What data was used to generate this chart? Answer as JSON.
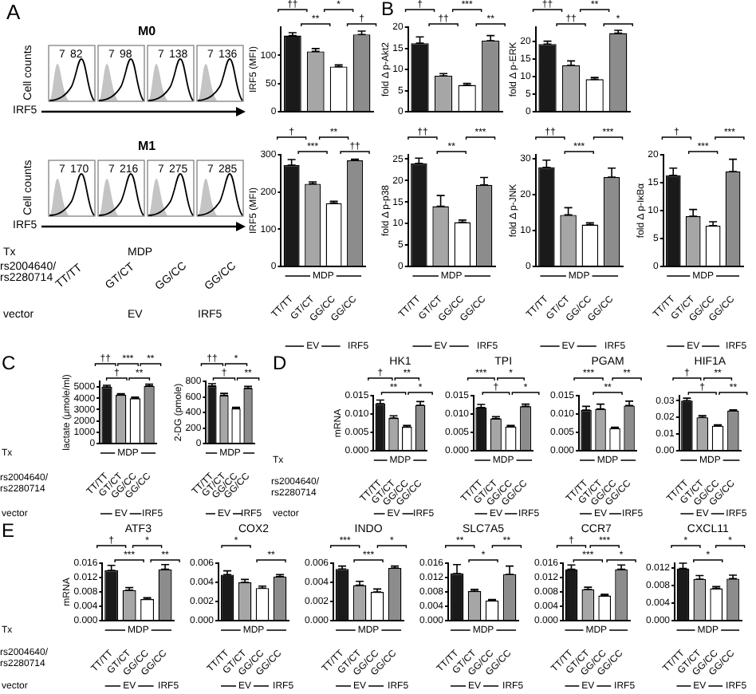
{
  "chart_data": [
    {
      "type": "other",
      "title": "M0",
      "ylabel": "Cell counts",
      "xlabel": "IRF5",
      "annotations": [
        "A",
        "7",
        "82",
        "7",
        "98",
        "7",
        "138",
        "7",
        "136"
      ]
    },
    {
      "type": "bar",
      "ylabel": "IRF5 (MFI)",
      "categories": [
        null,
        null,
        null,
        null
      ],
      "values": [
        135,
        107,
        80,
        137
      ],
      "errors": [
        [
          135,
          140
        ],
        [
          107,
          112
        ],
        [
          80,
          83
        ],
        [
          137,
          143
        ]
      ],
      "colors": [
        "#1a1a1a",
        "#a6a6a6",
        "#ffffff",
        "#8c8c8c"
      ],
      "ylim": [
        0,
        150
      ],
      "yticks": [
        0,
        50,
        100
      ],
      "tick_labels": "y",
      "annotations": [
        "††",
        "**",
        "*",
        "†"
      ]
    },
    {
      "type": "other",
      "title": "M1",
      "ylabel": "Cell counts",
      "xlabel": "IRF5",
      "categories": [
        "TT/TT",
        "GT/CT",
        "GG/CC",
        "GG/CC"
      ],
      "annotations": [
        "7",
        "170",
        "7",
        "216",
        "7",
        "275",
        "7",
        "285",
        "Tx",
        "MDP",
        "rs2004640/rs2280714",
        "vector",
        "EV",
        "IRF5"
      ]
    },
    {
      "type": "bar",
      "ylabel": "IRF5 (MFI)",
      "categories": [
        "TT/TT",
        "GT/CT",
        "GG/CC",
        "GG/CC"
      ],
      "values": [
        272,
        222,
        170,
        285
      ],
      "errors": [
        [
          272,
          287
        ],
        [
          222,
          227
        ],
        [
          170,
          175
        ],
        [
          285,
          288
        ]
      ],
      "colors": [
        "#1a1a1a",
        "#a6a6a6",
        "#ffffff",
        "#8c8c8c"
      ],
      "ylim": [
        0,
        300
      ],
      "yticks": [
        0,
        100,
        200,
        300
      ],
      "annotations": [
        "†",
        "***",
        "**",
        "††",
        "MDP",
        "EV",
        "IRF5"
      ]
    },
    {
      "type": "bar",
      "ylabel": "fold Δ p-Akt2",
      "categories": [
        null,
        null,
        null,
        null
      ],
      "values": [
        16.2,
        8.5,
        6.3,
        16.8
      ],
      "errors": [
        [
          16.2,
          17.7
        ],
        [
          8.5,
          9
        ],
        [
          6.3,
          6.7
        ],
        [
          16.8,
          18
        ]
      ],
      "colors": [
        "#1a1a1a",
        "#a6a6a6",
        "#ffffff",
        "#8c8c8c"
      ],
      "ylim": [
        0,
        20
      ],
      "yticks": [
        0,
        5,
        10,
        15,
        20
      ],
      "tick_labels": "y",
      "annotations": [
        "B",
        "†",
        "††",
        "***",
        "**"
      ]
    },
    {
      "type": "bar",
      "ylabel": "fold Δ p-ERK",
      "categories": [
        null,
        null,
        null,
        null
      ],
      "values": [
        19.2,
        13.2,
        9.2,
        22.3
      ],
      "errors": [
        [
          19.2,
          20
        ],
        [
          13.2,
          14.4
        ],
        [
          9.2,
          9.7
        ],
        [
          22.3,
          23.1
        ]
      ],
      "colors": [
        "#1a1a1a",
        "#a6a6a6",
        "#ffffff",
        "#8c8c8c"
      ],
      "ylim": [
        0,
        24
      ],
      "yticks": [
        0,
        5,
        10,
        15,
        20
      ],
      "tick_labels": "y",
      "annotations": [
        "††",
        "††",
        "**",
        "*"
      ]
    },
    {
      "type": "bar",
      "ylabel": "fold Δ p-p38",
      "categories": [
        "TT/TT",
        "GT/CT",
        "GG/CC",
        "GG/CC"
      ],
      "values": [
        24,
        14,
        10.3,
        19
      ],
      "errors": [
        [
          24,
          25.2
        ],
        [
          14,
          16.5
        ],
        [
          10.3,
          10.8
        ],
        [
          19,
          20.7
        ]
      ],
      "colors": [
        "#1a1a1a",
        "#a6a6a6",
        "#ffffff",
        "#8c8c8c"
      ],
      "ylim": [
        0,
        26
      ],
      "yticks": [
        0,
        5,
        10,
        15,
        20,
        25
      ],
      "annotations": [
        "††",
        "**",
        "***",
        "MDP",
        "EV",
        "IRF5"
      ]
    },
    {
      "type": "bar",
      "ylabel": "fold Δ p-JNK",
      "categories": [
        "TT/TT",
        "GT/CT",
        "GG/CC",
        "GG/CC"
      ],
      "values": [
        27.5,
        14.3,
        11.6,
        24.8
      ],
      "errors": [
        [
          27.5,
          29.5
        ],
        [
          14.3,
          16.3
        ],
        [
          11.6,
          12.1
        ],
        [
          24.8,
          27.3
        ]
      ],
      "colors": [
        "#1a1a1a",
        "#a6a6a6",
        "#ffffff",
        "#8c8c8c"
      ],
      "ylim": [
        0,
        31
      ],
      "yticks": [
        0,
        10,
        20,
        30
      ],
      "annotations": [
        "††",
        "***",
        "***",
        "MDP",
        "EV",
        "IRF5"
      ]
    },
    {
      "type": "bar",
      "ylabel": "fold Δ p-IκBα",
      "categories": [
        "TT/TT",
        "GT/CT",
        "GG/CC",
        "GG/CC"
      ],
      "values": [
        16.3,
        9,
        7.3,
        17
      ],
      "errors": [
        [
          16.3,
          17.6
        ],
        [
          9,
          10.2
        ],
        [
          7.3,
          8
        ],
        [
          17,
          19.2
        ]
      ],
      "colors": [
        "#1a1a1a",
        "#a6a6a6",
        "#ffffff",
        "#8c8c8c"
      ],
      "ylim": [
        0,
        20
      ],
      "yticks": [
        0,
        5,
        10,
        15,
        20
      ],
      "annotations": [
        "†",
        "***",
        "***",
        "MDP",
        "EV",
        "IRF5"
      ]
    },
    {
      "type": "bar",
      "ylabel": "lactate (μmole/ml)",
      "categories": [
        "TT/TT",
        "GT/CT",
        "GG/CC",
        "GG/CC"
      ],
      "values": [
        5000,
        4300,
        4000,
        5100
      ],
      "errors": [
        [
          5000,
          5150
        ],
        [
          4300,
          4400
        ],
        [
          4000,
          4100
        ],
        [
          5100,
          5250
        ]
      ],
      "colors": [
        "#1a1a1a",
        "#a6a6a6",
        "#ffffff",
        "#8c8c8c"
      ],
      "ylim": [
        0,
        5500
      ],
      "yticks": [
        0,
        1000,
        2000,
        3000,
        4000,
        5000
      ],
      "annotations": [
        "C",
        "††",
        "†",
        "***",
        "**",
        "**",
        "Tx",
        "MDP",
        "rs2004640/rs2280714",
        "vector",
        "EV",
        "IRF5"
      ]
    },
    {
      "type": "bar",
      "ylabel": "2-DG (pmole)",
      "categories": [
        "TT/TT",
        "GT/CT",
        "GG/CC",
        "GG/CC"
      ],
      "values": [
        740,
        620,
        450,
        710
      ],
      "errors": [
        [
          740,
          770
        ],
        [
          620,
          645
        ],
        [
          450,
          465
        ],
        [
          710,
          735
        ]
      ],
      "colors": [
        "#1a1a1a",
        "#a6a6a6",
        "#ffffff",
        "#8c8c8c"
      ],
      "ylim": [
        0,
        800
      ],
      "yticks": [
        0,
        200,
        400,
        600,
        800
      ],
      "annotations": [
        "††",
        "†",
        "*",
        "**",
        "MDP",
        "EV",
        "IRF5"
      ]
    },
    {
      "type": "bar",
      "title": "HK1",
      "ylabel": "mRNA",
      "categories": [
        "TT/TT",
        "GT/CT",
        "GG/CC",
        "GG/CC"
      ],
      "values": [
        0.0128,
        0.0089,
        0.0065,
        0.0124
      ],
      "errors": [
        [
          0.0128,
          0.0138
        ],
        [
          0.0089,
          0.0095
        ],
        [
          0.0065,
          0.0069
        ],
        [
          0.0124,
          0.0134
        ]
      ],
      "colors": [
        "#1a1a1a",
        "#a6a6a6",
        "#ffffff",
        "#8c8c8c"
      ],
      "ylim": [
        0,
        0.015
      ],
      "yticks": [
        {
          "value": 0,
          "label": "0.000"
        },
        {
          "value": 0.005,
          "label": "0.005"
        },
        {
          "value": 0.01,
          "label": "0.010"
        },
        {
          "value": 0.015,
          "label": "0.015"
        }
      ],
      "annotations": [
        "D",
        "†",
        "**",
        "**",
        "*",
        "Tx",
        "MDP",
        "rs2004640/rs2280714",
        "vector",
        "EV",
        "IRF5"
      ]
    },
    {
      "type": "bar",
      "title": "TPI",
      "categories": [
        "TT/TT",
        "GT/CT",
        "GG/CC",
        "GG/CC"
      ],
      "values": [
        0.0118,
        0.0088,
        0.0066,
        0.0121
      ],
      "errors": [
        [
          0.0118,
          0.0126
        ],
        [
          0.0088,
          0.0093
        ],
        [
          0.0066,
          0.0069
        ],
        [
          0.0121,
          0.0127
        ]
      ],
      "colors": [
        "#1a1a1a",
        "#a6a6a6",
        "#ffffff",
        "#8c8c8c"
      ],
      "ylim": [
        0,
        0.015
      ],
      "yticks": [
        {
          "value": 0,
          "label": "0.000"
        },
        {
          "value": 0.005,
          "label": "0.005"
        },
        {
          "value": 0.01,
          "label": "0.010"
        },
        {
          "value": 0.015,
          "label": "0.015"
        }
      ],
      "annotations": [
        "***",
        "†",
        "*",
        "*",
        "MDP",
        "EV",
        "IRF5"
      ]
    },
    {
      "type": "bar",
      "title": "PGAM",
      "categories": [
        "TT/TT",
        "GT/CT",
        "GG/CC",
        "GG/CC"
      ],
      "values": [
        0.0111,
        0.0114,
        0.0061,
        0.0123
      ],
      "errors": [
        [
          0.0111,
          0.0121
        ],
        [
          0.0114,
          0.0127
        ],
        [
          0.0061,
          0.0064
        ],
        [
          0.0123,
          0.0135
        ]
      ],
      "colors": [
        "#1a1a1a",
        "#a6a6a6",
        "#ffffff",
        "#8c8c8c"
      ],
      "ylim": [
        0,
        0.015
      ],
      "yticks": [
        {
          "value": 0,
          "label": "0.000"
        },
        {
          "value": 0.005,
          "label": "0.005"
        },
        {
          "value": 0.01,
          "label": "0.010"
        },
        {
          "value": 0.015,
          "label": "0.015"
        }
      ],
      "annotations": [
        "***",
        "**",
        "**",
        "MDP",
        "EV",
        "IRF5"
      ]
    },
    {
      "type": "bar",
      "title": "HIF1A",
      "categories": [
        "TT/TT",
        "GT/CT",
        "GG/CC",
        "GG/CC"
      ],
      "values": [
        0.03,
        0.02,
        0.015,
        0.024
      ],
      "errors": [
        [
          0.03,
          0.0315
        ],
        [
          0.02,
          0.021
        ],
        [
          0.015,
          0.0155
        ],
        [
          0.024,
          0.0245
        ]
      ],
      "colors": [
        "#1a1a1a",
        "#a6a6a6",
        "#ffffff",
        "#8c8c8c"
      ],
      "ylim": [
        0,
        0.033
      ],
      "yticks": [
        {
          "value": 0,
          "label": "0.00"
        },
        {
          "value": 0.01,
          "label": "0.01"
        },
        {
          "value": 0.02,
          "label": "0.02"
        },
        {
          "value": 0.03,
          "label": "0.03"
        }
      ],
      "annotations": [
        "†",
        "†",
        "**",
        "**",
        "MDP",
        "EV",
        "IRF5"
      ]
    },
    {
      "type": "bar",
      "title": "ATF3",
      "ylabel": "mRNA",
      "categories": [
        "TT/TT",
        "GT/CT",
        "GG/CC",
        "GG/CC"
      ],
      "values": [
        0.014,
        0.0085,
        0.006,
        0.0143
      ],
      "errors": [
        [
          0.014,
          0.0154
        ],
        [
          0.0085,
          0.0092
        ],
        [
          0.006,
          0.0064
        ],
        [
          0.0143,
          0.0156
        ]
      ],
      "colors": [
        "#1a1a1a",
        "#a6a6a6",
        "#ffffff",
        "#8c8c8c"
      ],
      "ylim": [
        0,
        0.016
      ],
      "yticks": [
        {
          "value": 0,
          "label": "0.000"
        },
        {
          "value": 0.004,
          "label": "0.004"
        },
        {
          "value": 0.008,
          "label": "0.008"
        },
        {
          "value": 0.012,
          "label": "0.012"
        },
        {
          "value": 0.016,
          "label": "0.016"
        }
      ],
      "annotations": [
        "E",
        "†",
        "***",
        "*",
        "**",
        "Tx",
        "MDP",
        "rs2004640/rs2280714",
        "vector",
        "EV",
        "IRF5"
      ]
    },
    {
      "type": "bar",
      "title": "COX2",
      "categories": [
        "TT/TT",
        "GT/CT",
        "GG/CC",
        "GG/CC"
      ],
      "values": [
        0.0048,
        0.004,
        0.0034,
        0.0046
      ],
      "errors": [
        [
          0.0048,
          0.0052
        ],
        [
          0.004,
          0.0043
        ],
        [
          0.0034,
          0.0036
        ],
        [
          0.0046,
          0.0048
        ]
      ],
      "colors": [
        "#1a1a1a",
        "#a6a6a6",
        "#ffffff",
        "#8c8c8c"
      ],
      "ylim": [
        0,
        0.006
      ],
      "yticks": [
        {
          "value": 0,
          "label": "0.000"
        },
        {
          "value": 0.002,
          "label": "0.002"
        },
        {
          "value": 0.004,
          "label": "0.004"
        },
        {
          "value": 0.006,
          "label": "0.006"
        }
      ],
      "annotations": [
        "*",
        "**",
        "MDP",
        "EV",
        "IRF5"
      ]
    },
    {
      "type": "bar",
      "title": "INDO",
      "categories": [
        "TT/TT",
        "GT/CT",
        "GG/CC",
        "GG/CC"
      ],
      "values": [
        0.0054,
        0.0037,
        0.003,
        0.0055
      ],
      "errors": [
        [
          0.0054,
          0.0057
        ],
        [
          0.0037,
          0.0041
        ],
        [
          0.003,
          0.0033
        ],
        [
          0.0055,
          0.0057
        ]
      ],
      "colors": [
        "#1a1a1a",
        "#a6a6a6",
        "#ffffff",
        "#8c8c8c"
      ],
      "ylim": [
        0,
        0.006
      ],
      "yticks": [
        {
          "value": 0,
          "label": "0.000"
        },
        {
          "value": 0.002,
          "label": "0.002"
        },
        {
          "value": 0.004,
          "label": "0.004"
        },
        {
          "value": 0.006,
          "label": "0.006"
        }
      ],
      "annotations": [
        "***",
        "***",
        "*",
        "MDP",
        "EV",
        "IRF5"
      ]
    },
    {
      "type": "bar",
      "title": "SLC7A5",
      "categories": [
        "TT/TT",
        "GT/CT",
        "GG/CC",
        "GG/CC"
      ],
      "values": [
        0.0131,
        0.0082,
        0.0056,
        0.0129
      ],
      "errors": [
        [
          0.0131,
          0.0156
        ],
        [
          0.0082,
          0.0087
        ],
        [
          0.0056,
          0.0059
        ],
        [
          0.0129,
          0.0152
        ]
      ],
      "colors": [
        "#1a1a1a",
        "#a6a6a6",
        "#ffffff",
        "#8c8c8c"
      ],
      "ylim": [
        0,
        0.016
      ],
      "yticks": [
        {
          "value": 0,
          "label": "0.000"
        },
        {
          "value": 0.004,
          "label": "0.004"
        },
        {
          "value": 0.008,
          "label": "0.008"
        },
        {
          "value": 0.012,
          "label": "0.012"
        },
        {
          "value": 0.016,
          "label": "0.016"
        }
      ],
      "annotations": [
        "**",
        "*",
        "**",
        "MDP",
        "EV",
        "IRF5"
      ]
    },
    {
      "type": "bar",
      "title": "CCR7",
      "categories": [
        "TT/TT",
        "GT/CT",
        "GG/CC",
        "GG/CC"
      ],
      "values": [
        0.0143,
        0.0087,
        0.007,
        0.0143
      ],
      "errors": [
        [
          0.0143,
          0.0155
        ],
        [
          0.0087,
          0.0093
        ],
        [
          0.007,
          0.0073
        ],
        [
          0.0143,
          0.0155
        ]
      ],
      "colors": [
        "#1a1a1a",
        "#a6a6a6",
        "#ffffff",
        "#8c8c8c"
      ],
      "ylim": [
        0,
        0.016
      ],
      "yticks": [
        {
          "value": 0,
          "label": "0.000"
        },
        {
          "value": 0.004,
          "label": "0.004"
        },
        {
          "value": 0.008,
          "label": "0.008"
        },
        {
          "value": 0.012,
          "label": "0.012"
        },
        {
          "value": 0.016,
          "label": "0.016"
        }
      ],
      "annotations": [
        "†",
        "***",
        "***",
        "*",
        "MDP",
        "EV",
        "IRF5"
      ]
    },
    {
      "type": "bar",
      "title": "CXCL11",
      "categories": [
        "TT/TT",
        "GT/CT",
        "GG/CC",
        "GG/CC"
      ],
      "values": [
        0.0118,
        0.0094,
        0.0073,
        0.0095
      ],
      "errors": [
        [
          0.0118,
          0.013
        ],
        [
          0.0094,
          0.0102
        ],
        [
          0.0073,
          0.0077
        ],
        [
          0.0095,
          0.0103
        ]
      ],
      "colors": [
        "#1a1a1a",
        "#a6a6a6",
        "#ffffff",
        "#8c8c8c"
      ],
      "ylim": [
        0,
        0.013
      ],
      "yticks": [
        {
          "value": 0,
          "label": "0.000"
        },
        {
          "value": 0.004,
          "label": "0.004"
        },
        {
          "value": 0.008,
          "label": "0.008"
        },
        {
          "value": 0.012,
          "label": "0.012"
        }
      ],
      "annotations": [
        "*",
        "*",
        "*",
        "MDP",
        "EV",
        "IRF5"
      ]
    }
  ]
}
